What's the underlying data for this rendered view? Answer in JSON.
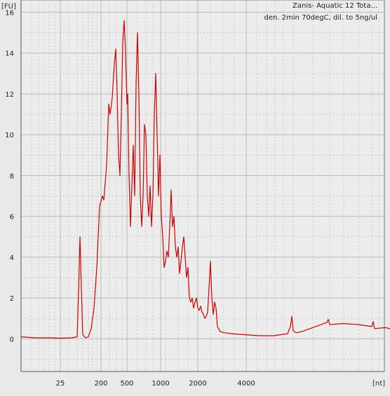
{
  "chart_data": {
    "type": "line",
    "title_lines": [
      "Zanis- Aquatic 12 Tota...",
      "den. 2min 70degC, dil. to 5ng/ul"
    ],
    "y_unit": "[FU]",
    "x_unit": "[nt]",
    "ylim": [
      -1.6,
      16.6
    ],
    "y_ticks": [
      0,
      2,
      4,
      6,
      8,
      10,
      12,
      14,
      16
    ],
    "x_ticks": [
      "25",
      "200",
      "500",
      "1000",
      "2000",
      "4000"
    ],
    "grid": true,
    "line_color": "#d00000",
    "series": [
      {
        "values": [
          [
            0,
            0.1
          ],
          [
            20,
            0.05
          ],
          [
            40,
            0.05
          ],
          [
            56,
            0.03
          ],
          [
            72,
            0.05
          ],
          [
            80,
            0.1
          ],
          [
            82,
            2.3
          ],
          [
            84,
            5.0
          ],
          [
            86,
            2.5
          ],
          [
            88,
            0.2
          ],
          [
            92,
            0.05
          ],
          [
            96,
            0.1
          ],
          [
            100,
            0.5
          ],
          [
            104,
            1.5
          ],
          [
            108,
            3.5
          ],
          [
            112,
            6.5
          ],
          [
            116,
            7.0
          ],
          [
            118,
            6.8
          ],
          [
            122,
            8.5
          ],
          [
            125,
            11.5
          ],
          [
            127,
            11.0
          ],
          [
            130,
            11.8
          ],
          [
            133,
            13.5
          ],
          [
            135,
            14.2
          ],
          [
            137,
            12.0
          ],
          [
            139,
            9.0
          ],
          [
            141,
            8.0
          ],
          [
            143,
            11.0
          ],
          [
            145,
            14.5
          ],
          [
            147,
            15.6
          ],
          [
            149,
            14.0
          ],
          [
            151,
            11.5
          ],
          [
            152,
            12.0
          ],
          [
            154,
            8.0
          ],
          [
            156,
            5.5
          ],
          [
            158,
            7.5
          ],
          [
            160,
            9.5
          ],
          [
            162,
            7.0
          ],
          [
            164,
            12.5
          ],
          [
            166,
            15.0
          ],
          [
            168,
            12.0
          ],
          [
            170,
            7.0
          ],
          [
            172,
            5.5
          ],
          [
            174,
            7.0
          ],
          [
            176,
            10.5
          ],
          [
            178,
            10.0
          ],
          [
            180,
            7.0
          ],
          [
            182,
            6.0
          ],
          [
            184,
            7.5
          ],
          [
            186,
            5.5
          ],
          [
            188,
            7.0
          ],
          [
            190,
            11.0
          ],
          [
            192,
            13.0
          ],
          [
            194,
            10.0
          ],
          [
            196,
            7.0
          ],
          [
            198,
            9.0
          ],
          [
            200,
            6.0
          ],
          [
            202,
            5.0
          ],
          [
            204,
            3.5
          ],
          [
            206,
            3.8
          ],
          [
            208,
            4.3
          ],
          [
            210,
            4.0
          ],
          [
            212,
            5.5
          ],
          [
            214,
            7.3
          ],
          [
            216,
            5.5
          ],
          [
            218,
            6.0
          ],
          [
            220,
            4.5
          ],
          [
            222,
            4.0
          ],
          [
            224,
            4.5
          ],
          [
            226,
            3.2
          ],
          [
            228,
            3.8
          ],
          [
            230,
            4.5
          ],
          [
            232,
            5.0
          ],
          [
            234,
            4.0
          ],
          [
            236,
            3.0
          ],
          [
            238,
            3.5
          ],
          [
            240,
            2.0
          ],
          [
            242,
            1.8
          ],
          [
            244,
            2.0
          ],
          [
            246,
            1.5
          ],
          [
            248,
            1.8
          ],
          [
            250,
            2.0
          ],
          [
            252,
            1.5
          ],
          [
            254,
            1.4
          ],
          [
            256,
            1.6
          ],
          [
            258,
            1.3
          ],
          [
            260,
            1.2
          ],
          [
            262,
            1.0
          ],
          [
            264,
            1.1
          ],
          [
            266,
            1.3
          ],
          [
            268,
            2.5
          ],
          [
            270,
            3.8
          ],
          [
            272,
            2.0
          ],
          [
            274,
            1.2
          ],
          [
            276,
            1.8
          ],
          [
            278,
            1.5
          ],
          [
            280,
            0.6
          ],
          [
            284,
            0.35
          ],
          [
            290,
            0.3
          ],
          [
            300,
            0.25
          ],
          [
            320,
            0.2
          ],
          [
            340,
            0.15
          ],
          [
            360,
            0.15
          ],
          [
            380,
            0.25
          ],
          [
            384,
            0.6
          ],
          [
            386,
            1.1
          ],
          [
            388,
            0.4
          ],
          [
            392,
            0.3
          ],
          [
            400,
            0.35
          ],
          [
            420,
            0.6
          ],
          [
            436,
            0.8
          ],
          [
            438,
            0.95
          ],
          [
            440,
            0.7
          ],
          [
            460,
            0.75
          ],
          [
            480,
            0.7
          ],
          [
            500,
            0.6
          ],
          [
            502,
            0.85
          ],
          [
            504,
            0.5
          ],
          [
            520,
            0.55
          ],
          [
            530,
            0.45
          ],
          [
            540,
            0.3
          ]
        ]
      }
    ]
  }
}
